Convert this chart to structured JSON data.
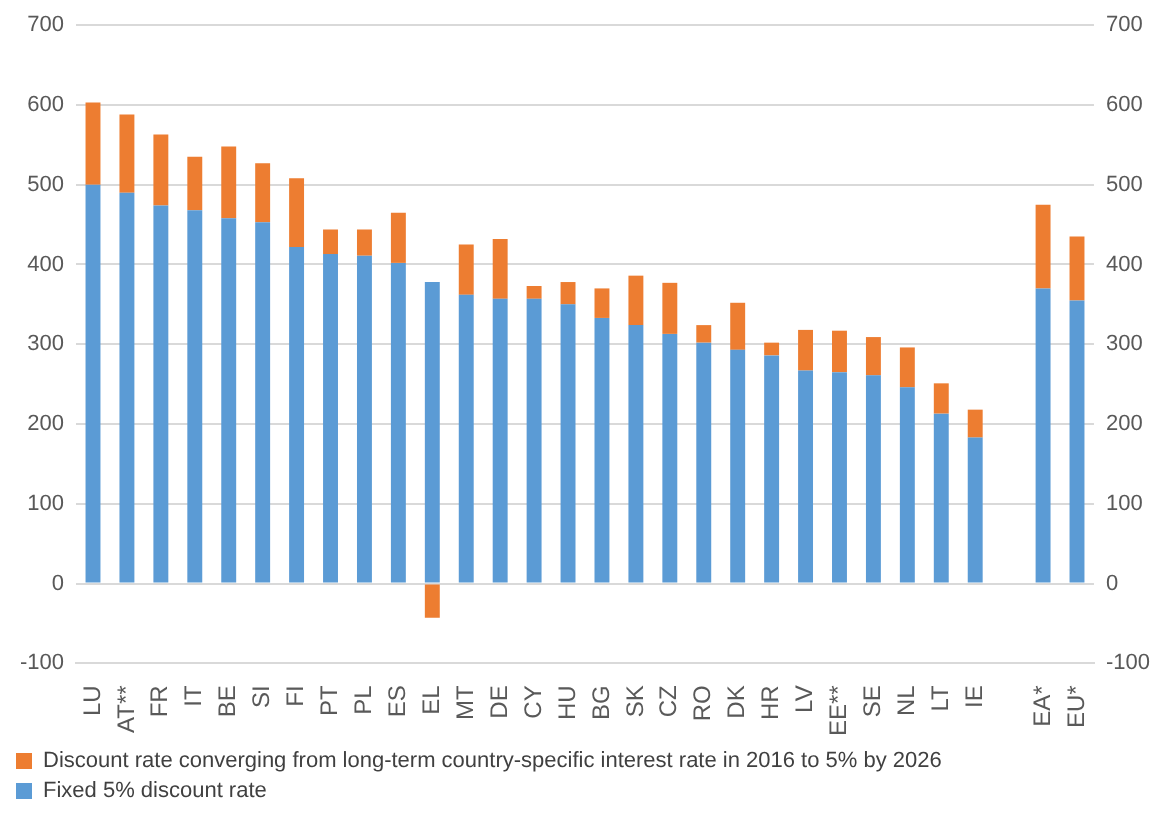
{
  "chart_data": {
    "type": "bar",
    "stacked": true,
    "categories": [
      "LU",
      "AT**",
      "FR",
      "IT",
      "BE",
      "SI",
      "FI",
      "PT",
      "PL",
      "ES",
      "EL",
      "MT",
      "DE",
      "CY",
      "HU",
      "BG",
      "SK",
      "CZ",
      "RO",
      "DK",
      "HR",
      "LV",
      "EE**",
      "SE",
      "NL",
      "LT",
      "IE",
      null,
      "EA*",
      "EU*"
    ],
    "series": [
      {
        "name": "Fixed 5% discount rate",
        "color": "#5b9bd5",
        "values": [
          500,
          490,
          474,
          468,
          458,
          453,
          422,
          413,
          411,
          402,
          378,
          362,
          357,
          357,
          350,
          333,
          324,
          313,
          302,
          293,
          286,
          267,
          265,
          261,
          246,
          213,
          183,
          null,
          370,
          355
        ]
      },
      {
        "name": "Discount rate converging from long-term country-specific interest rate in 2016 to 5% by 2026",
        "color": "#ed7d31",
        "values": [
          103,
          98,
          89,
          67,
          90,
          74,
          86,
          31,
          33,
          63,
          -43,
          63,
          75,
          16,
          28,
          37,
          62,
          64,
          22,
          59,
          16,
          51,
          52,
          48,
          50,
          38,
          35,
          null,
          105,
          80
        ]
      }
    ],
    "ylim": [
      -100,
      700
    ],
    "yticks": [
      -100,
      0,
      100,
      200,
      300,
      400,
      500,
      600,
      700
    ],
    "y2lim": [
      -100,
      700
    ],
    "y2ticks": [
      -100,
      0,
      100,
      200,
      300,
      400,
      500,
      600,
      700
    ],
    "grid": "y",
    "legend": "bottom left"
  }
}
